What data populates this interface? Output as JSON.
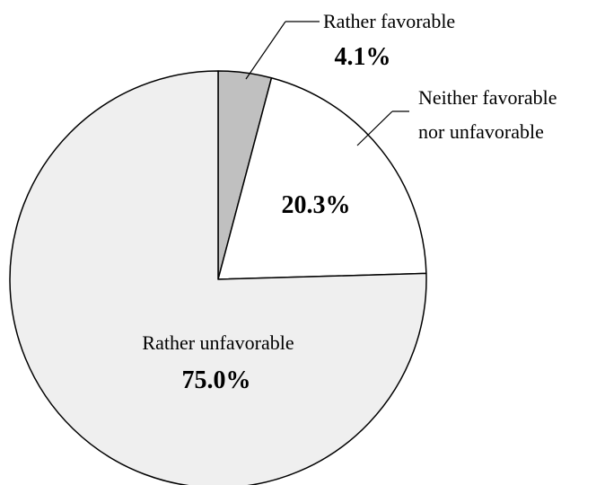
{
  "chart_data": {
    "type": "pie",
    "start_angle_deg_clockwise_from_top": 0,
    "direction": "clockwise",
    "slices": [
      {
        "label": "Rather favorable",
        "value": 4.1,
        "display": "4.1%",
        "color": "#c0c0c0"
      },
      {
        "label": "Neither favorable nor unfavorable",
        "label_lines": [
          "Neither favorable",
          "nor unfavorable"
        ],
        "value": 20.3,
        "display": "20.3%",
        "color": "#ffffff"
      },
      {
        "label": "Rather unfavorable",
        "value": 75.0,
        "display": "75.0%",
        "color": "#efefef"
      }
    ],
    "stroke_color": "#000000",
    "legend": "none",
    "title": ""
  }
}
